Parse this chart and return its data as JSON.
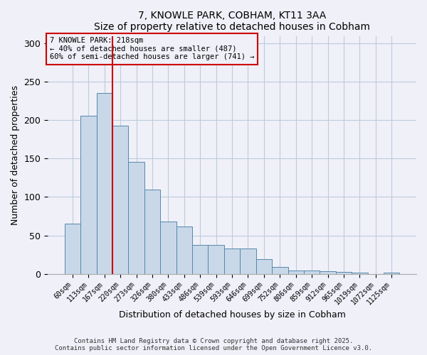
{
  "title": "7, KNOWLE PARK, COBHAM, KT11 3AA",
  "subtitle": "Size of property relative to detached houses in Cobham",
  "xlabel": "Distribution of detached houses by size in Cobham",
  "ylabel": "Number of detached properties",
  "bar_labels": [
    "60sqm",
    "113sqm",
    "167sqm",
    "220sqm",
    "273sqm",
    "326sqm",
    "380sqm",
    "433sqm",
    "486sqm",
    "539sqm",
    "593sqm",
    "646sqm",
    "699sqm",
    "752sqm",
    "806sqm",
    "859sqm",
    "912sqm",
    "965sqm",
    "1019sqm",
    "1072sqm",
    "1125sqm"
  ],
  "bar_values": [
    65,
    206,
    236,
    193,
    146,
    110,
    68,
    62,
    38,
    38,
    33,
    33,
    19,
    9,
    4,
    4,
    3,
    2,
    1,
    0,
    1
  ],
  "bar_color": "#c8d8e8",
  "bar_edgecolor": "#5588aa",
  "vline_color": "#cc0000",
  "annotation_title": "7 KNOWLE PARK: 218sqm",
  "annotation_line1": "← 40% of detached houses are smaller (487)",
  "annotation_line2": "60% of semi-detached houses are larger (741) →",
  "annotation_box_edgecolor": "#cc0000",
  "ylim": [
    0,
    310
  ],
  "yticks": [
    0,
    50,
    100,
    150,
    200,
    250,
    300
  ],
  "footer1": "Contains HM Land Registry data © Crown copyright and database right 2025.",
  "footer2": "Contains public sector information licensed under the Open Government Licence v3.0.",
  "bg_color": "#f0f0f8"
}
